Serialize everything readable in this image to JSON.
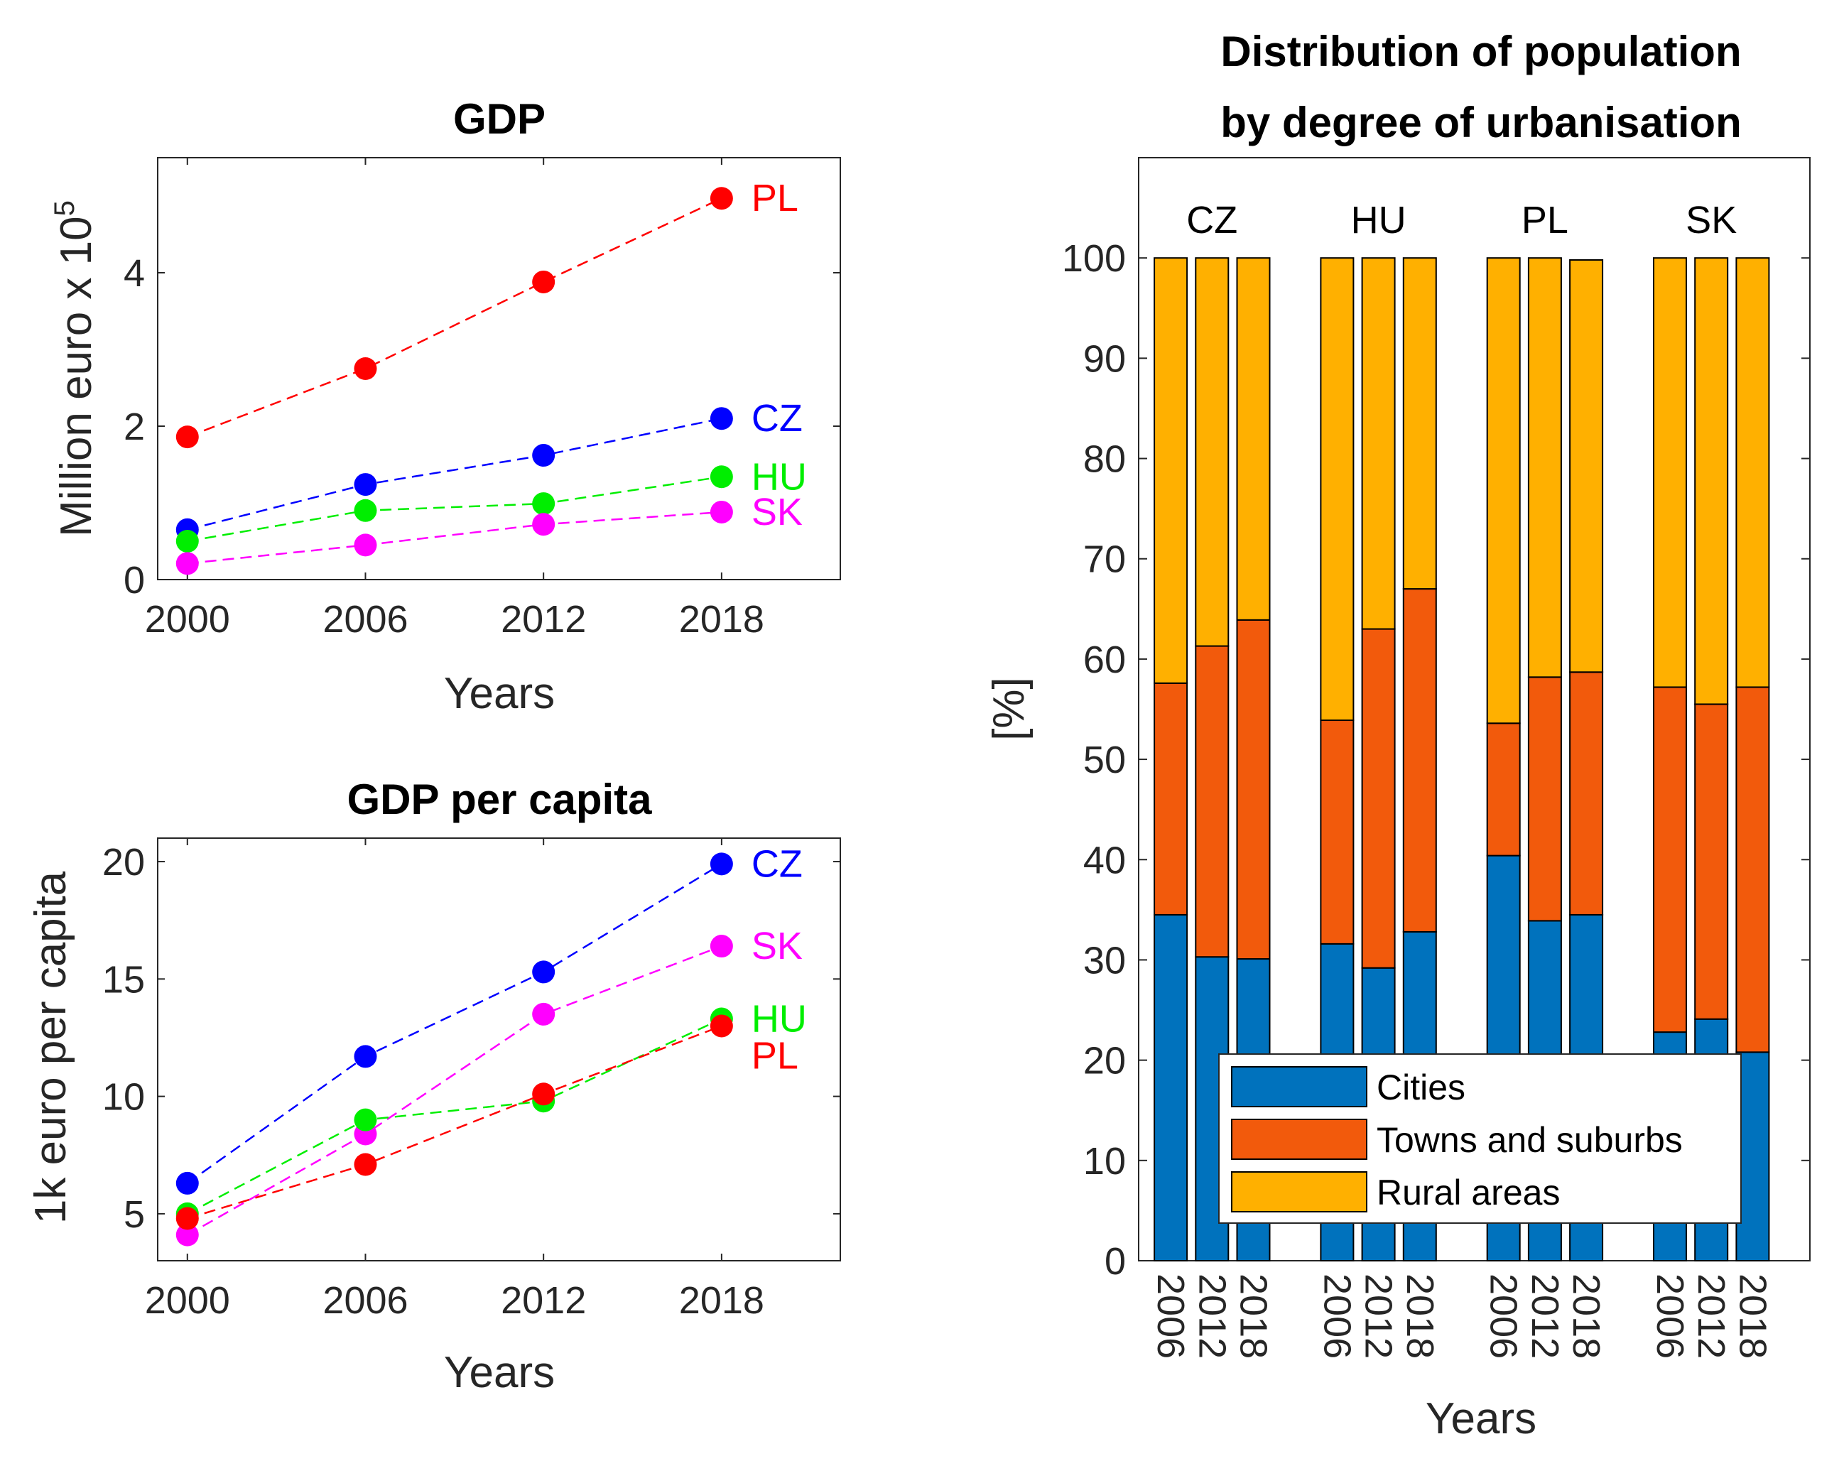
{
  "chart_data": [
    {
      "type": "line",
      "title": "GDP",
      "xlabel": "Years",
      "ylabel": "Million euro x 10",
      "ylabel_exponent": "5",
      "x": [
        2000,
        2006,
        2012,
        2018
      ],
      "xticks": [
        "2000",
        "2006",
        "2012",
        "2018"
      ],
      "xlim": [
        1999,
        2022
      ],
      "ylim": [
        0,
        5.5
      ],
      "yticks": [
        "0",
        "2",
        "4"
      ],
      "series": [
        {
          "name": "PL",
          "color": "#ff0000",
          "values": [
            1.86,
            2.75,
            3.88,
            4.97
          ]
        },
        {
          "name": "CZ",
          "color": "#0000ff",
          "values": [
            0.65,
            1.24,
            1.62,
            2.1
          ]
        },
        {
          "name": "HU",
          "color": "#00ee00",
          "values": [
            0.5,
            0.9,
            0.99,
            1.34
          ]
        },
        {
          "name": "SK",
          "color": "#ff00ff",
          "values": [
            0.21,
            0.45,
            0.72,
            0.88
          ]
        }
      ]
    },
    {
      "type": "line",
      "title": "GDP per capita",
      "xlabel": "Years",
      "ylabel": "1k euro per capita",
      "x": [
        2000,
        2006,
        2012,
        2018
      ],
      "xticks": [
        "2000",
        "2006",
        "2012",
        "2018"
      ],
      "xlim": [
        1999,
        2022
      ],
      "ylim": [
        3,
        21
      ],
      "yticks": [
        "5",
        "10",
        "15",
        "20"
      ],
      "series": [
        {
          "name": "CZ",
          "color": "#0000ff",
          "values": [
            6.3,
            11.7,
            15.3,
            19.9
          ]
        },
        {
          "name": "SK",
          "color": "#ff00ff",
          "values": [
            4.1,
            8.4,
            13.5,
            16.4
          ]
        },
        {
          "name": "HU",
          "color": "#00ee00",
          "values": [
            5.0,
            9.0,
            9.8,
            13.3
          ]
        },
        {
          "name": "PL",
          "color": "#ff0000",
          "values": [
            4.8,
            7.1,
            10.1,
            13.0
          ]
        }
      ]
    },
    {
      "type": "bar",
      "stacked": true,
      "title": [
        "Distribution of population",
        "by degree of urbanisation"
      ],
      "xlabel": "Years",
      "ylabel": "[%]",
      "ylim": [
        0,
        110
      ],
      "yticks": [
        "0",
        "10",
        "20",
        "30",
        "40",
        "50",
        "60",
        "70",
        "80",
        "90",
        "100"
      ],
      "legend_position": "bottom-left",
      "groups": [
        {
          "name": "CZ",
          "categories": [
            "2006",
            "2012",
            "2018"
          ]
        },
        {
          "name": "HU",
          "categories": [
            "2006",
            "2012",
            "2018"
          ]
        },
        {
          "name": "PL",
          "categories": [
            "2006",
            "2012",
            "2018"
          ]
        },
        {
          "name": "SK",
          "categories": [
            "2006",
            "2012",
            "2018"
          ]
        }
      ],
      "series": [
        {
          "name": "Cities",
          "color": "#0072bd",
          "values": [
            34.5,
            30.3,
            30.1,
            31.6,
            29.2,
            32.8,
            40.4,
            33.9,
            34.5,
            22.8,
            24.1,
            20.8
          ]
        },
        {
          "name": "Towns and suburbs",
          "color": "#f25a0c",
          "values": [
            23.1,
            31.0,
            33.8,
            22.3,
            33.8,
            34.2,
            13.2,
            24.3,
            24.2,
            34.4,
            31.4,
            36.4
          ]
        },
        {
          "name": "Rural areas",
          "color": "#ffb000",
          "values": [
            42.4,
            38.7,
            36.1,
            46.1,
            37.0,
            33.0,
            46.4,
            41.8,
            41.1,
            42.8,
            44.5,
            42.8
          ]
        }
      ]
    }
  ]
}
